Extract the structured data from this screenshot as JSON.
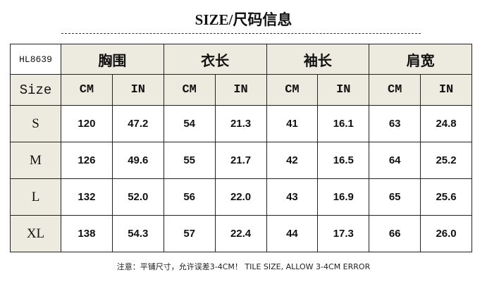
{
  "title": "SIZE/尺码信息",
  "model": "HL8639",
  "measurements": [
    "胸围",
    "衣长",
    "袖长",
    "肩宽"
  ],
  "size_label": "Size",
  "units": [
    "CM",
    "IN"
  ],
  "rows": [
    {
      "size": "S",
      "values": [
        "120",
        "47.2",
        "54",
        "21.3",
        "41",
        "16.1",
        "63",
        "24.8"
      ]
    },
    {
      "size": "M",
      "values": [
        "126",
        "49.6",
        "55",
        "21.7",
        "42",
        "16.5",
        "64",
        "25.2"
      ]
    },
    {
      "size": "L",
      "values": [
        "132",
        "52.0",
        "56",
        "22.0",
        "43",
        "16.9",
        "65",
        "25.6"
      ]
    },
    {
      "size": "XL",
      "values": [
        "138",
        "54.3",
        "57",
        "22.4",
        "44",
        "17.3",
        "66",
        "26.0"
      ]
    }
  ],
  "note": "注意：平铺尺寸，允许误差3-4CM！ TILE SIZE, ALLOW 3-4CM ERROR",
  "colors": {
    "header_bg": "#edeadf",
    "border": "#222222"
  }
}
